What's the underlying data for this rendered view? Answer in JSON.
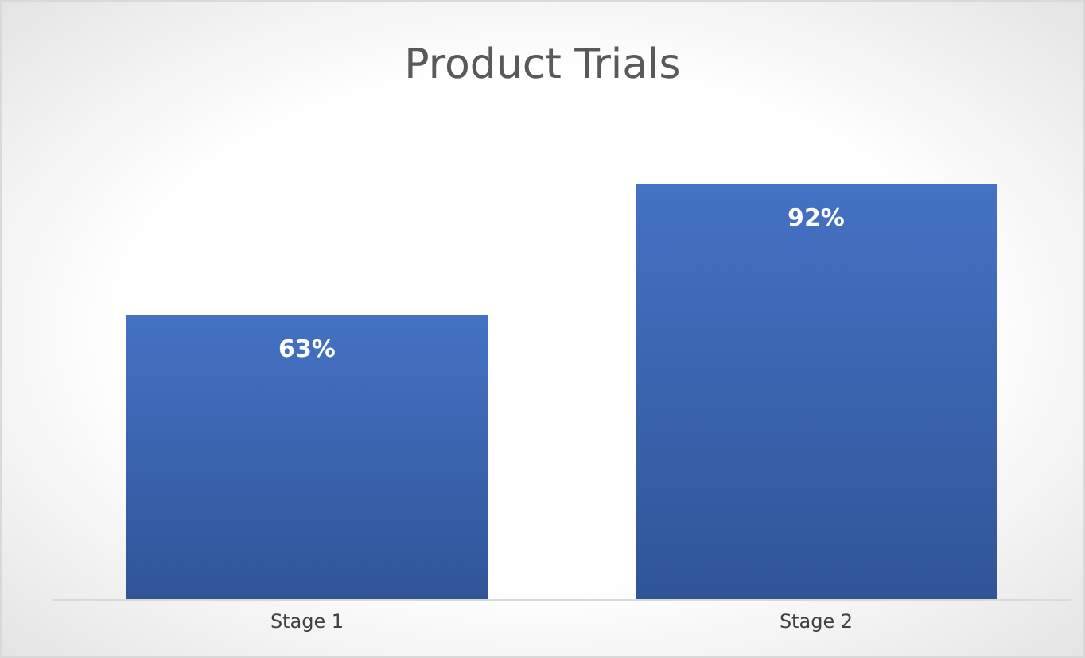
{
  "chart_data": {
    "type": "bar",
    "title": "Product Trials",
    "categories": [
      "Stage 1",
      "Stage 2"
    ],
    "values": [
      63,
      92
    ],
    "value_labels": [
      "63%",
      "92%"
    ],
    "color": "#4472c4"
  }
}
